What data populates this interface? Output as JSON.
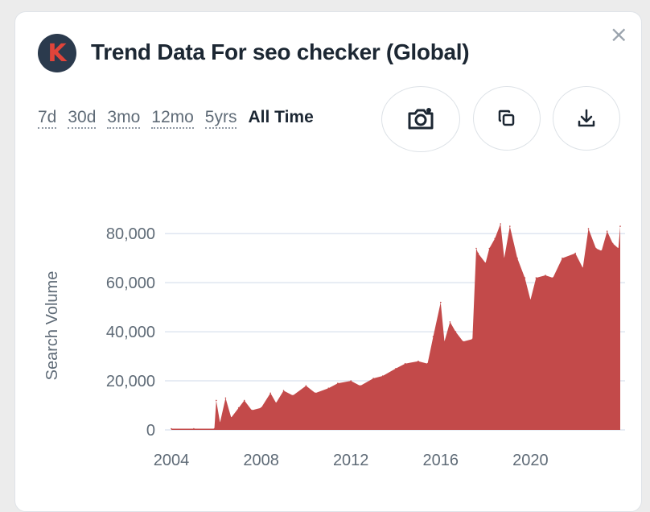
{
  "header": {
    "logo_letter": "K",
    "title": "Trend Data For seo checker (Global)",
    "close": "×"
  },
  "ranges": [
    "7d",
    "30d",
    "3mo",
    "12mo",
    "5yrs",
    "All Time"
  ],
  "active_range": "All Time",
  "icons": {
    "camera": "camera-icon",
    "copy": "copy-icon",
    "download": "download-icon"
  },
  "colors": {
    "area": "#c34a4a",
    "grid": "#dfe6f0",
    "logo_bg": "#2b3a4d",
    "logo_letter": "#e0443a"
  },
  "chart_data": {
    "type": "area",
    "ylabel": "Search Volume",
    "xlabel": "",
    "x_ticks": [
      "2004",
      "2008",
      "2012",
      "2016",
      "2020"
    ],
    "y_ticks": [
      "0",
      "20,000",
      "40,000",
      "60,000",
      "80,000"
    ],
    "ylim": [
      0,
      85000
    ],
    "grid": true,
    "x": [
      "2004-01",
      "2005-01",
      "2005-12",
      "2006-01",
      "2006-03",
      "2006-06",
      "2006-09",
      "2007-01",
      "2007-04",
      "2007-08",
      "2008-01",
      "2008-06",
      "2008-09",
      "2009-01",
      "2009-06",
      "2010-01",
      "2010-06",
      "2011-01",
      "2011-06",
      "2012-01",
      "2012-06",
      "2013-01",
      "2013-06",
      "2014-01",
      "2014-06",
      "2015-01",
      "2015-06",
      "2015-09",
      "2016-01",
      "2016-03",
      "2016-06",
      "2016-09",
      "2017-01",
      "2017-06",
      "2017-08",
      "2017-09",
      "2018-01",
      "2018-03",
      "2018-06",
      "2018-09",
      "2018-11",
      "2019-02",
      "2019-06",
      "2019-10",
      "2020-01",
      "2020-04",
      "2020-09",
      "2021-01",
      "2021-06",
      "2022-01",
      "2022-05",
      "2022-08",
      "2022-12",
      "2023-03",
      "2023-06",
      "2023-09",
      "2023-12",
      "2024-01"
    ],
    "values": [
      500,
      500,
      500,
      12000,
      3000,
      13000,
      5000,
      9000,
      12000,
      8000,
      9000,
      15000,
      11000,
      16000,
      14000,
      18000,
      15000,
      17000,
      19000,
      20000,
      18000,
      21000,
      22000,
      25000,
      27000,
      28000,
      27000,
      38000,
      52000,
      36000,
      44000,
      40000,
      36000,
      37000,
      74000,
      72000,
      68000,
      74000,
      78000,
      84000,
      70000,
      83000,
      70000,
      62000,
      53000,
      62000,
      63000,
      62000,
      70000,
      72000,
      66000,
      82000,
      74000,
      73000,
      81000,
      76000,
      74000,
      83000
    ]
  }
}
